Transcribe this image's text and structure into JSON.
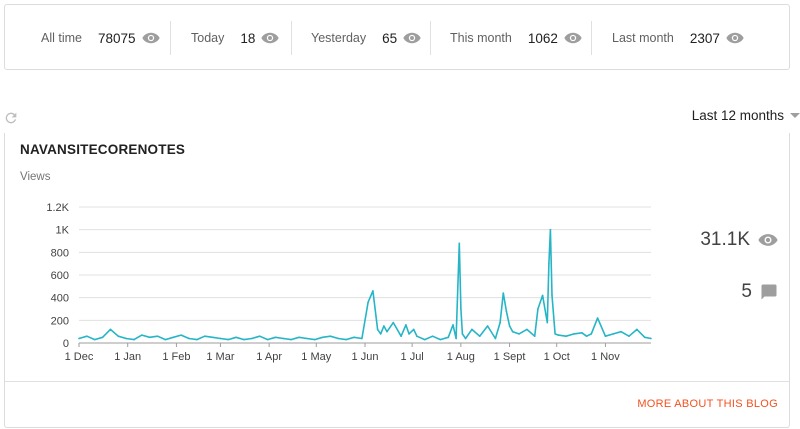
{
  "stats": [
    {
      "label": "All time",
      "value": "78075"
    },
    {
      "label": "Today",
      "value": "18"
    },
    {
      "label": "Yesterday",
      "value": "65"
    },
    {
      "label": "This month",
      "value": "1062"
    },
    {
      "label": "Last month",
      "value": "2307"
    }
  ],
  "range_selector": {
    "label": "Last 12 months"
  },
  "blog": {
    "name": "NAVANSITECORENOTES",
    "views_label": "Views",
    "total_views": "31.1K",
    "total_comments": "5",
    "more_link": "MORE ABOUT THIS BLOG"
  },
  "colors": {
    "accent": "#f4511e",
    "line": "#26b5c7",
    "icon": "#9e9e9e"
  },
  "icons": {
    "stat_icon": "eye-icon",
    "refresh": "refresh-icon",
    "comments": "comment-icon"
  },
  "chart_data": {
    "type": "line",
    "ylabel": "Views",
    "ylim": [
      0,
      1200
    ],
    "yticks": [
      0,
      200,
      400,
      600,
      800,
      1000,
      1200
    ],
    "ytick_labels": [
      "0",
      "200",
      "400",
      "600",
      "800",
      "1K",
      "1.2K"
    ],
    "grid": true,
    "x_tick_labels": [
      "1 Dec",
      "1 Jan",
      "1 Feb",
      "1 Mar",
      "1 Apr",
      "1 May",
      "1 Jun",
      "1 Jul",
      "1 Aug",
      "1 Sept",
      "1 Oct",
      "1 Nov"
    ],
    "x_tick_days": [
      0,
      31,
      62,
      90,
      121,
      151,
      182,
      212,
      243,
      274,
      304,
      335
    ],
    "x_days": [
      0,
      5,
      10,
      15,
      20,
      25,
      30,
      35,
      40,
      45,
      50,
      55,
      60,
      65,
      70,
      75,
      80,
      85,
      90,
      95,
      100,
      105,
      110,
      115,
      120,
      125,
      130,
      135,
      140,
      145,
      150,
      155,
      160,
      165,
      170,
      175,
      180,
      184,
      187,
      190,
      192,
      194,
      196,
      200,
      205,
      208,
      210,
      213,
      215,
      220,
      225,
      230,
      235,
      238,
      240,
      242,
      243,
      244,
      246,
      250,
      255,
      260,
      265,
      268,
      270,
      272,
      274,
      276,
      280,
      285,
      290,
      292,
      295,
      298,
      299,
      300,
      301,
      303,
      305,
      310,
      315,
      320,
      323,
      326,
      330,
      335,
      340,
      345,
      350,
      355,
      360,
      364
    ],
    "y_values": [
      40,
      60,
      30,
      50,
      120,
      60,
      40,
      30,
      70,
      50,
      60,
      30,
      50,
      70,
      40,
      30,
      60,
      50,
      40,
      30,
      50,
      30,
      40,
      60,
      30,
      50,
      40,
      30,
      50,
      40,
      30,
      50,
      60,
      40,
      30,
      50,
      40,
      360,
      460,
      120,
      80,
      150,
      100,
      180,
      60,
      160,
      80,
      120,
      60,
      30,
      60,
      30,
      50,
      160,
      40,
      880,
      300,
      80,
      40,
      120,
      60,
      150,
      40,
      180,
      440,
      280,
      150,
      100,
      80,
      120,
      60,
      300,
      420,
      180,
      700,
      1000,
      420,
      80,
      70,
      60,
      80,
      90,
      60,
      80,
      220,
      60,
      80,
      100,
      60,
      120,
      50,
      40
    ]
  }
}
